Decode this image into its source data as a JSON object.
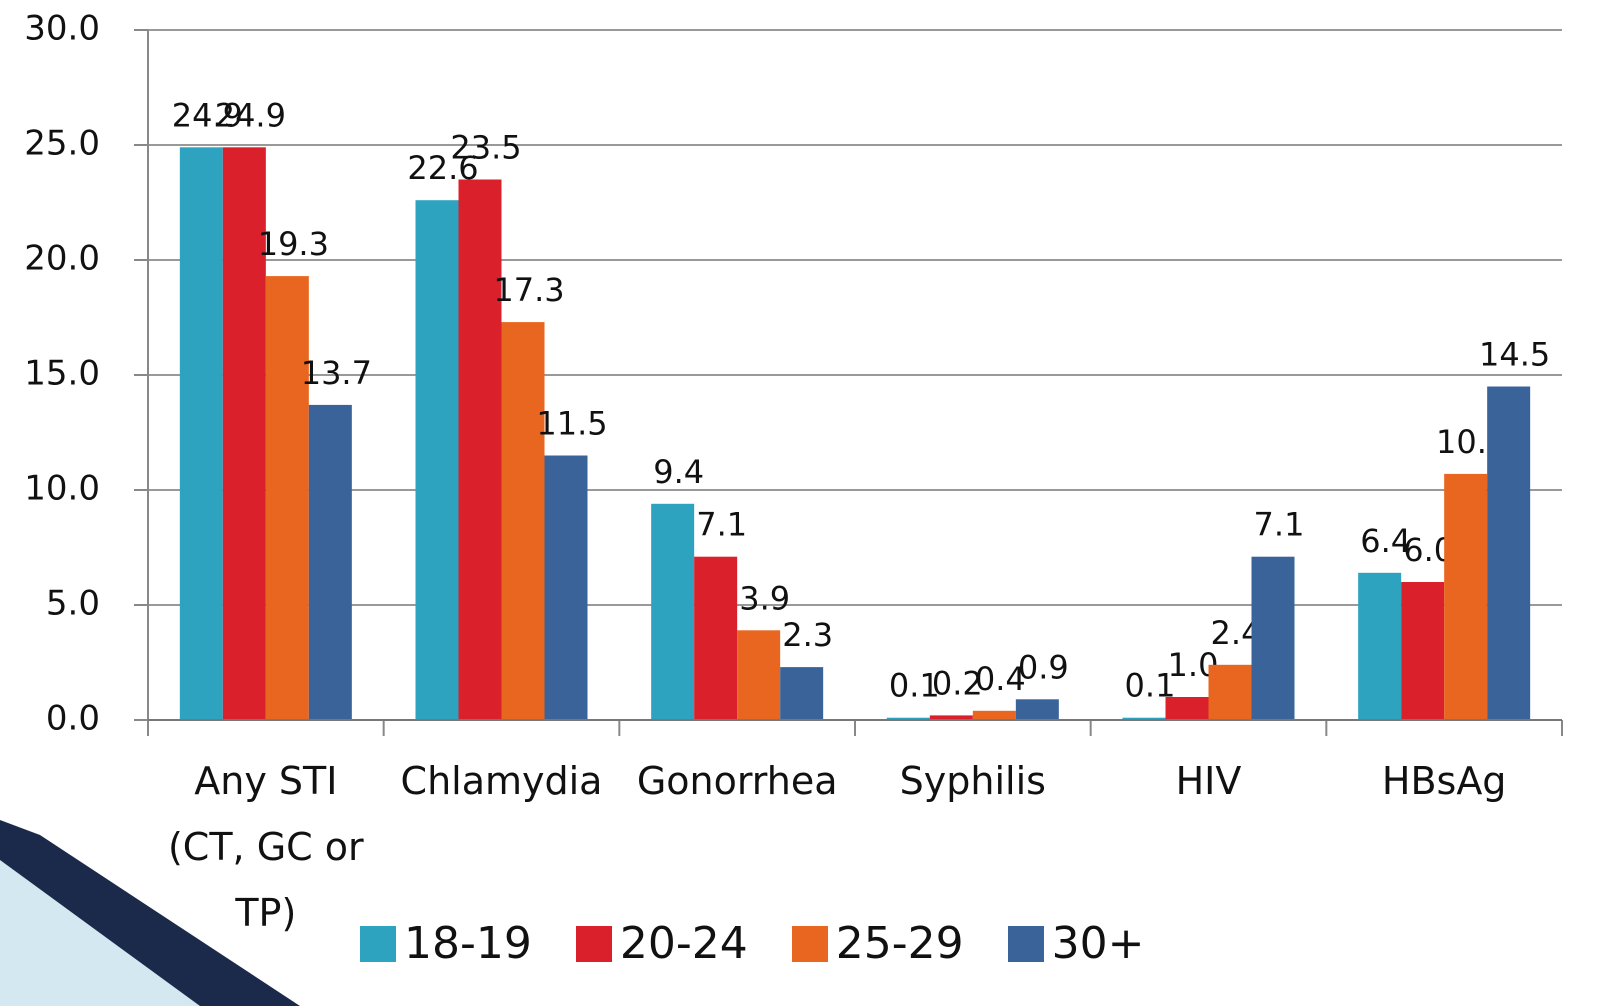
{
  "chart_data": {
    "type": "bar",
    "categories": [
      "Any STI (CT, GC or TP)",
      "Chlamydia",
      "Gonorrhea",
      "Syphilis",
      "HIV",
      "HBsAg"
    ],
    "series": [
      {
        "name": "18-19",
        "color": "#2ea3c0",
        "values": [
          24.9,
          22.6,
          9.4,
          0.1,
          0.1,
          6.4
        ],
        "value_labels": [
          "24.9",
          "22.6",
          "9.4",
          "0.1",
          "0.1",
          "6.4"
        ]
      },
      {
        "name": "20-24",
        "color": "#d9202b",
        "values": [
          24.9,
          23.5,
          7.1,
          0.2,
          1,
          6
        ],
        "value_labels": [
          "24.9",
          "23.5",
          "7.1",
          "0.2",
          "1.0",
          "6.0"
        ]
      },
      {
        "name": "25-29",
        "color": "#e8661f",
        "values": [
          19.3,
          17.3,
          3.9,
          0.4,
          2.4,
          10.7
        ],
        "value_labels": [
          "19.3",
          "17.3",
          "3.9",
          "0.4",
          "2.4",
          "10.7"
        ]
      },
      {
        "name": "30+",
        "color": "#3a6399",
        "values": [
          13.7,
          11.5,
          2.3,
          0.9,
          7.1,
          14.5
        ],
        "value_labels": [
          "13.7",
          "11.5",
          "2.3",
          "0.9",
          "7.1",
          "14.5"
        ]
      }
    ],
    "ylim": [
      0,
      30
    ],
    "yticks": [
      {
        "value": 0,
        "label": "0.0"
      },
      {
        "value": 5,
        "label": "5.0"
      },
      {
        "value": 10,
        "label": "10.0"
      },
      {
        "value": 15,
        "label": "15.0"
      },
      {
        "value": 20,
        "label": "20.0"
      },
      {
        "value": 25,
        "label": "25.0"
      },
      {
        "value": 30,
        "label": "30.0"
      }
    ],
    "grid": true
  }
}
